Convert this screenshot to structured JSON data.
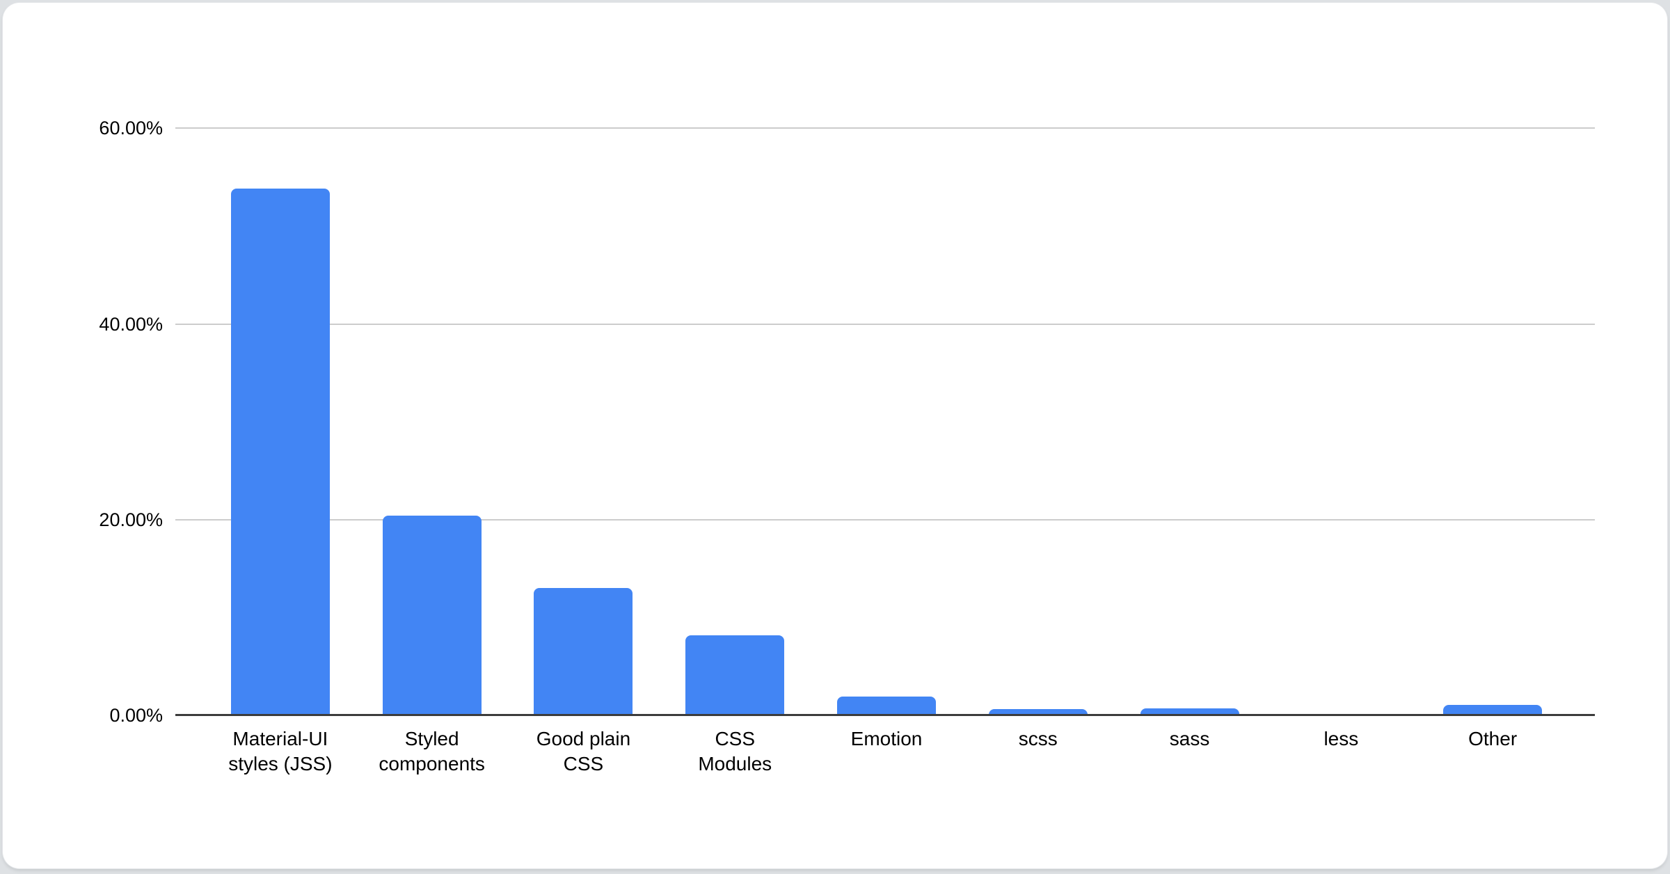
{
  "page": {
    "background_color": "#dee1e4",
    "card_color": "#ffffff"
  },
  "chart_data": {
    "type": "bar",
    "title": "",
    "xlabel": "",
    "ylabel": "",
    "categories": [
      "Material-UI styles (JSS)",
      "Styled components",
      "Good plain CSS",
      "CSS Modules",
      "Emotion",
      "scss",
      "sass",
      "less",
      "Other"
    ],
    "tick_label_lines": [
      [
        "Material-UI",
        "styles (JSS)"
      ],
      [
        "Styled",
        "components"
      ],
      [
        "Good plain",
        "CSS"
      ],
      [
        "CSS",
        "Modules"
      ],
      [
        "Emotion"
      ],
      [
        "scss"
      ],
      [
        "sass"
      ],
      [
        "less"
      ],
      [
        "Other"
      ]
    ],
    "values": [
      53.8,
      20.4,
      13.0,
      8.2,
      1.9,
      0.65,
      0.7,
      0.1,
      1.1
    ],
    "value_unit": "%",
    "y_ticks": [
      "0.00%",
      "20.00%",
      "40.00%",
      "60.00%"
    ],
    "y_tick_values": [
      0,
      20,
      40,
      60
    ],
    "ylim": [
      0,
      64
    ],
    "grid": true,
    "legend_position": "none",
    "bar_color": "#4285f4",
    "gridline_color": "#cccccc",
    "axis_line_color": "#3c3c3c",
    "label_color": "#000000"
  }
}
